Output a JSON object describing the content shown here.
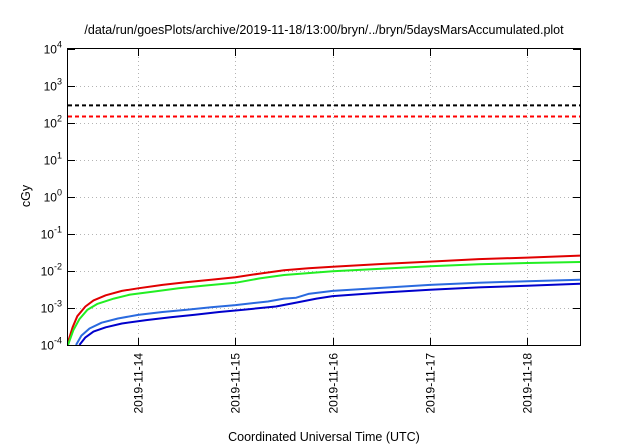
{
  "chart_data": {
    "type": "line",
    "title": "/data/run/goesPlots/archive/2019-11-18/13:00/bryn/../bryn/5daysMarsAccumulated.plot",
    "xlabel": "Coordinated Universal Time (UTC)",
    "ylabel": "cGy",
    "yscale": "log",
    "ylim": [
      0.0001,
      10000
    ],
    "xlim": [
      "2019-11-13 06:42",
      "2019-11-18 13:00"
    ],
    "grid": true,
    "y_ticks": [
      {
        "value": 0.0001,
        "base": "10",
        "exp": "-4"
      },
      {
        "value": 0.001,
        "base": "10",
        "exp": "-3"
      },
      {
        "value": 0.01,
        "base": "10",
        "exp": "-2"
      },
      {
        "value": 0.1,
        "base": "10",
        "exp": "-1"
      },
      {
        "value": 1,
        "base": "10",
        "exp": "0"
      },
      {
        "value": 10,
        "base": "10",
        "exp": "1"
      },
      {
        "value": 100,
        "base": "10",
        "exp": "2"
      },
      {
        "value": 1000,
        "base": "10",
        "exp": "3"
      },
      {
        "value": 10000,
        "base": "10",
        "exp": "4"
      }
    ],
    "x_ticks": [
      "2019-11-14",
      "2019-11-15",
      "2019-11-16",
      "2019-11-17",
      "2019-11-18"
    ],
    "reference_lines": [
      {
        "y": 300,
        "color": "#000000",
        "style": "dashed"
      },
      {
        "y": 150,
        "color": "#ff0000",
        "style": "dashed"
      }
    ],
    "series": [
      {
        "color": "#e00000",
        "points": [
          [
            "2019-11-13 06:42",
            0.00012
          ],
          [
            "2019-11-13 07:50",
            0.0003
          ],
          [
            "2019-11-13 09:00",
            0.0006
          ],
          [
            "2019-11-13 11:00",
            0.0011
          ],
          [
            "2019-11-13 13:00",
            0.0016
          ],
          [
            "2019-11-13 16:00",
            0.0022
          ],
          [
            "2019-11-13 20:00",
            0.0029
          ],
          [
            "2019-11-14 00:00",
            0.0034
          ],
          [
            "2019-11-14 06:00",
            0.0042
          ],
          [
            "2019-11-14 12:00",
            0.005
          ],
          [
            "2019-11-14 18:00",
            0.0058
          ],
          [
            "2019-11-15 00:00",
            0.0068
          ],
          [
            "2019-11-15 06:00",
            0.0085
          ],
          [
            "2019-11-15 12:00",
            0.0105
          ],
          [
            "2019-11-15 18:00",
            0.0118
          ],
          [
            "2019-11-16 00:00",
            0.013
          ],
          [
            "2019-11-16 12:00",
            0.0155
          ],
          [
            "2019-11-17 00:00",
            0.018
          ],
          [
            "2019-11-17 12:00",
            0.021
          ],
          [
            "2019-11-18 00:00",
            0.023
          ],
          [
            "2019-11-18 13:00",
            0.026
          ]
        ]
      },
      {
        "color": "#22ee22",
        "points": [
          [
            "2019-11-13 06:42",
            0.0001
          ],
          [
            "2019-11-13 08:00",
            0.00025
          ],
          [
            "2019-11-13 09:30",
            0.0005
          ],
          [
            "2019-11-13 11:30",
            0.0009
          ],
          [
            "2019-11-13 14:00",
            0.0013
          ],
          [
            "2019-11-13 18:00",
            0.0018
          ],
          [
            "2019-11-13 22:00",
            0.0023
          ],
          [
            "2019-11-14 04:00",
            0.0028
          ],
          [
            "2019-11-14 10:00",
            0.0034
          ],
          [
            "2019-11-14 16:00",
            0.004
          ],
          [
            "2019-11-15 00:00",
            0.0048
          ],
          [
            "2019-11-15 06:00",
            0.0063
          ],
          [
            "2019-11-15 12:00",
            0.0078
          ],
          [
            "2019-11-15 18:00",
            0.0088
          ],
          [
            "2019-11-16 00:00",
            0.0098
          ],
          [
            "2019-11-16 12:00",
            0.0115
          ],
          [
            "2019-11-17 00:00",
            0.0135
          ],
          [
            "2019-11-17 12:00",
            0.0152
          ],
          [
            "2019-11-18 00:00",
            0.0165
          ],
          [
            "2019-11-18 13:00",
            0.0175
          ]
        ]
      },
      {
        "color": "#2a6adf",
        "points": [
          [
            "2019-11-13 08:40",
            0.0001
          ],
          [
            "2019-11-13 10:00",
            0.00018
          ],
          [
            "2019-11-13 12:00",
            0.00028
          ],
          [
            "2019-11-13 15:00",
            0.0004
          ],
          [
            "2019-11-13 19:00",
            0.00052
          ],
          [
            "2019-11-14 00:00",
            0.00065
          ],
          [
            "2019-11-14 06:00",
            0.00078
          ],
          [
            "2019-11-14 12:00",
            0.0009
          ],
          [
            "2019-11-14 18:00",
            0.00105
          ],
          [
            "2019-11-15 00:00",
            0.0012
          ],
          [
            "2019-11-15 08:00",
            0.0015
          ],
          [
            "2019-11-15 12:00",
            0.0018
          ],
          [
            "2019-11-15 15:00",
            0.0019
          ],
          [
            "2019-11-15 18:00",
            0.0024
          ],
          [
            "2019-11-16 00:00",
            0.0029
          ],
          [
            "2019-11-16 12:00",
            0.0035
          ],
          [
            "2019-11-17 00:00",
            0.0042
          ],
          [
            "2019-11-17 12:00",
            0.0048
          ],
          [
            "2019-11-18 00:00",
            0.0053
          ],
          [
            "2019-11-18 13:00",
            0.0058
          ]
        ]
      },
      {
        "color": "#0000cc",
        "points": [
          [
            "2019-11-13 09:30",
            0.0001
          ],
          [
            "2019-11-13 11:00",
            0.00016
          ],
          [
            "2019-11-13 13:00",
            0.00023
          ],
          [
            "2019-11-13 16:00",
            0.0003
          ],
          [
            "2019-11-13 20:00",
            0.00038
          ],
          [
            "2019-11-14 02:00",
            0.00047
          ],
          [
            "2019-11-14 08:00",
            0.00056
          ],
          [
            "2019-11-14 14:00",
            0.00066
          ],
          [
            "2019-11-14 20:00",
            0.00078
          ],
          [
            "2019-11-15 02:00",
            0.0009
          ],
          [
            "2019-11-15 10:00",
            0.0011
          ],
          [
            "2019-11-15 15:00",
            0.0014
          ],
          [
            "2019-11-15 20:00",
            0.0018
          ],
          [
            "2019-11-16 00:00",
            0.0021
          ],
          [
            "2019-11-16 12:00",
            0.0026
          ],
          [
            "2019-11-17 00:00",
            0.0031
          ],
          [
            "2019-11-17 12:00",
            0.0036
          ],
          [
            "2019-11-18 00:00",
            0.004
          ],
          [
            "2019-11-18 13:00",
            0.0045
          ]
        ]
      }
    ]
  }
}
